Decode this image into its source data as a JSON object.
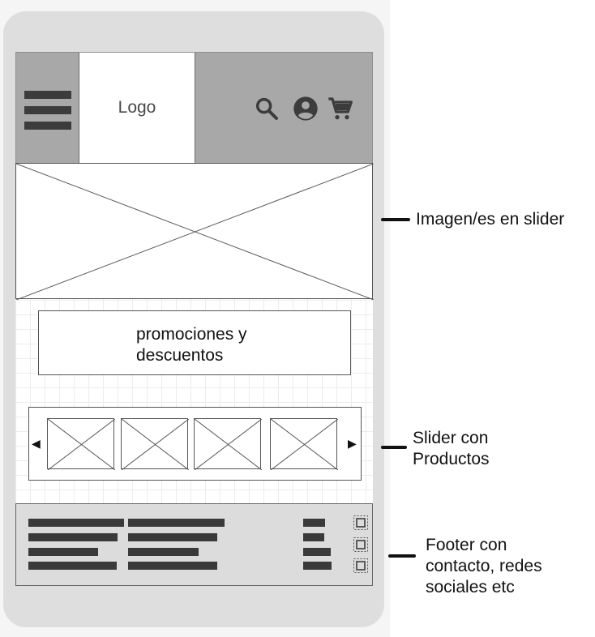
{
  "header": {
    "logo_text": "Logo",
    "icons": [
      "hamburger-menu-icon",
      "search-icon",
      "account-icon",
      "cart-icon"
    ]
  },
  "hero": {
    "placeholder": "image-placeholder"
  },
  "promo": {
    "text": "promociones y descuentos"
  },
  "product_slider": {
    "prev": "◀",
    "next": "▶",
    "items": [
      "product-image-1",
      "product-image-2",
      "product-image-3",
      "product-image-4"
    ]
  },
  "footer": {
    "social_icons": [
      "social-icon-1",
      "social-icon-2",
      "social-icon-3"
    ]
  },
  "annotations": {
    "slider": "Imagen/es en slider",
    "products_line1": "Slider con",
    "products_line2": "Productos",
    "footer_line1": "Footer con",
    "footer_line2": "contacto, redes",
    "footer_line3": "sociales etc"
  },
  "colors": {
    "header": "#a8a8a8",
    "phone_frame": "#dedede",
    "footer": "#dcdcdc",
    "icon": "#3c3c3c"
  }
}
